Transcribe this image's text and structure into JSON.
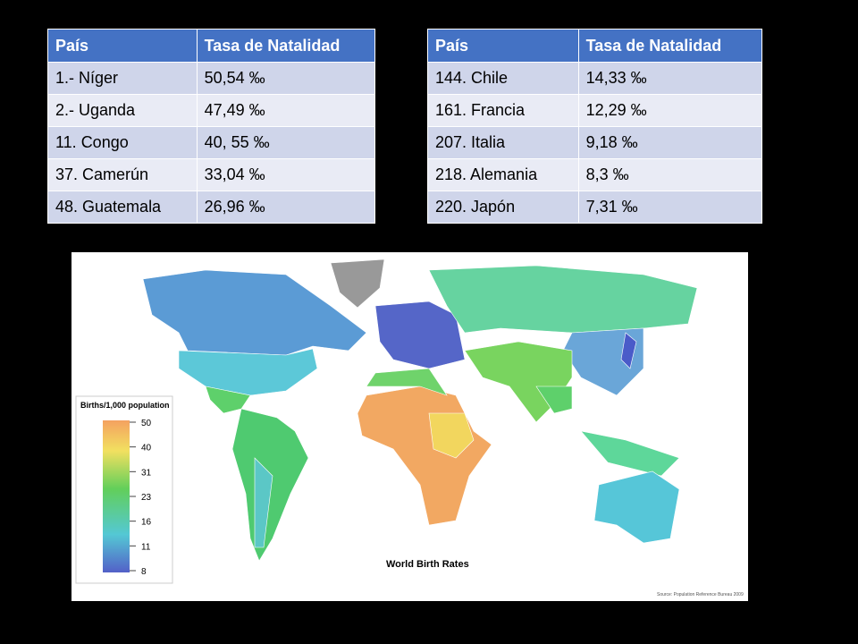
{
  "tables": [
    {
      "header": [
        "País",
        "Tasa de Natalidad"
      ],
      "rows": [
        [
          "1.- Níger",
          "50,54 ‰"
        ],
        [
          "2.- Uganda",
          "47,49 ‰"
        ],
        [
          "11. Congo",
          "40, 55 ‰"
        ],
        [
          "37. Camerún",
          "33,04 ‰"
        ],
        [
          "48. Guatemala",
          "26,96 ‰"
        ]
      ]
    },
    {
      "header": [
        "País",
        "Tasa de Natalidad"
      ],
      "rows": [
        [
          "144. Chile",
          "14,33 ‰"
        ],
        [
          "161. Francia",
          "12,29 ‰"
        ],
        [
          "207. Italia",
          "9,18 ‰"
        ],
        [
          "218. Alemania",
          "8,3 ‰"
        ],
        [
          "220. Japón",
          "7,31 ‰"
        ]
      ]
    }
  ],
  "map": {
    "title": "World Birth Rates",
    "legend_title": "Births/1,000 population",
    "legend_ticks": [
      50,
      40,
      31,
      23,
      16,
      11,
      8
    ],
    "source": "Source: Population Reference Bureau 2009"
  }
}
